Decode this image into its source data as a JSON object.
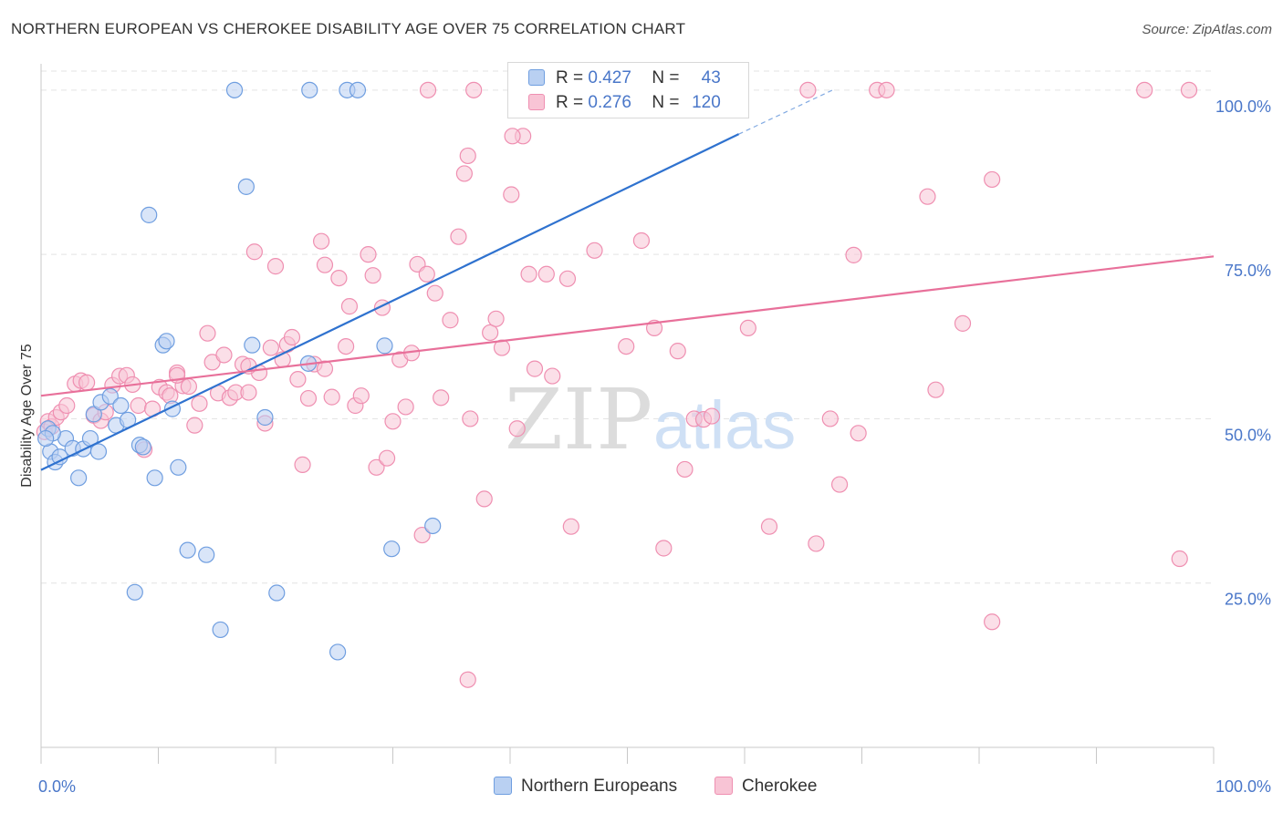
{
  "header": {
    "title": "NORTHERN EUROPEAN VS CHEROKEE DISABILITY AGE OVER 75 CORRELATION CHART",
    "source": "Source: ZipAtlas.com"
  },
  "colors": {
    "blue": "#6f9ee0",
    "blue_fill": "#b9d0f2",
    "blue_line": "#2f72cf",
    "pink": "#ef8fb1",
    "pink_fill": "#f8c4d5",
    "pink_line": "#e8709a",
    "tick_label": "#4a77c9",
    "grid": "#e3e3e3"
  },
  "legend": {
    "rows": [
      {
        "r_label": "R =",
        "r_value": "0.427",
        "n_label": "N =",
        "n_value": "43"
      },
      {
        "r_label": "R =",
        "r_value": "0.276",
        "n_label": "N =",
        "n_value": "120"
      }
    ]
  },
  "bottom_legend": {
    "series1": "Northern Europeans",
    "series2": "Cherokee"
  },
  "watermark": {
    "zip": "ZIP",
    "atlas": "atlas"
  },
  "chart_data": {
    "type": "scatter",
    "title": "NORTHERN EUROPEAN VS CHEROKEE DISABILITY AGE OVER 75 CORRELATION CHART",
    "xlabel": "",
    "ylabel": "Disability Age Over 75",
    "xlim": [
      0,
      100
    ],
    "ylim": [
      0,
      104
    ],
    "x_tick_labels": {
      "left": "0.0%",
      "right": "100.0%"
    },
    "y_ticks": [
      {
        "value": 25,
        "label": "25.0%"
      },
      {
        "value": 50,
        "label": "50.0%"
      },
      {
        "value": 75,
        "label": "75.0%"
      },
      {
        "value": 100,
        "label": "100.0%"
      }
    ],
    "grid": true,
    "series": [
      {
        "name": "Northern Europeans",
        "R": 0.427,
        "N": 43,
        "trend": {
          "x0": 0,
          "y0": 42.2,
          "x1": 59.5,
          "y1": 93.3,
          "dash_to_x": 67.5,
          "dash_to_y": 100
        },
        "points": [
          [
            0.6,
            48.5
          ],
          [
            0.8,
            45.0
          ],
          [
            1.2,
            43.4
          ],
          [
            1.6,
            44.2
          ],
          [
            2.1,
            47.0
          ],
          [
            2.7,
            45.5
          ],
          [
            3.2,
            41.0
          ],
          [
            3.6,
            45.4
          ],
          [
            4.2,
            47.0
          ],
          [
            4.5,
            50.7
          ],
          [
            4.9,
            45.0
          ],
          [
            5.1,
            52.5
          ],
          [
            5.9,
            53.4
          ],
          [
            6.4,
            49.0
          ],
          [
            6.8,
            52.0
          ],
          [
            7.4,
            49.8
          ],
          [
            8.4,
            46.0
          ],
          [
            8.7,
            45.7
          ],
          [
            9.2,
            81.0
          ],
          [
            9.7,
            41.0
          ],
          [
            10.4,
            61.2
          ],
          [
            10.7,
            61.8
          ],
          [
            11.2,
            51.5
          ],
          [
            11.7,
            42.6
          ],
          [
            12.5,
            30.0
          ],
          [
            14.1,
            29.3
          ],
          [
            15.3,
            17.9
          ],
          [
            16.5,
            100.0
          ],
          [
            17.5,
            85.3
          ],
          [
            18.0,
            61.2
          ],
          [
            19.1,
            50.2
          ],
          [
            20.1,
            23.5
          ],
          [
            22.8,
            58.4
          ],
          [
            22.9,
            100.0
          ],
          [
            25.3,
            14.5
          ],
          [
            26.1,
            100.0
          ],
          [
            27.0,
            100.0
          ],
          [
            29.3,
            61.1
          ],
          [
            29.9,
            30.2
          ],
          [
            33.4,
            33.7
          ],
          [
            8.0,
            23.6
          ],
          [
            1.0,
            47.8
          ],
          [
            0.4,
            47.0
          ]
        ]
      },
      {
        "name": "Cherokee",
        "R": 0.276,
        "N": 120,
        "trend": {
          "x0": 0,
          "y0": 53.5,
          "x1": 100,
          "y1": 74.7
        },
        "points": [
          [
            0.3,
            48.0
          ],
          [
            0.6,
            49.6
          ],
          [
            0.9,
            48.8
          ],
          [
            1.3,
            50.2
          ],
          [
            1.7,
            51.0
          ],
          [
            2.2,
            52.0
          ],
          [
            2.9,
            55.3
          ],
          [
            3.4,
            55.8
          ],
          [
            3.9,
            55.5
          ],
          [
            4.5,
            50.5
          ],
          [
            5.1,
            49.7
          ],
          [
            5.5,
            51.0
          ],
          [
            6.1,
            55.1
          ],
          [
            6.7,
            56.5
          ],
          [
            7.3,
            56.6
          ],
          [
            7.8,
            55.2
          ],
          [
            8.3,
            52.0
          ],
          [
            8.8,
            45.3
          ],
          [
            9.5,
            51.5
          ],
          [
            10.1,
            54.8
          ],
          [
            10.7,
            54.0
          ],
          [
            11.0,
            53.5
          ],
          [
            11.6,
            57.0
          ],
          [
            12.1,
            55.0
          ],
          [
            12.6,
            54.9
          ],
          [
            13.1,
            49.0
          ],
          [
            13.5,
            52.3
          ],
          [
            14.2,
            63.0
          ],
          [
            14.6,
            58.6
          ],
          [
            15.1,
            53.9
          ],
          [
            15.6,
            59.7
          ],
          [
            16.1,
            53.2
          ],
          [
            16.6,
            54.0
          ],
          [
            17.2,
            58.3
          ],
          [
            17.7,
            54.0
          ],
          [
            18.2,
            75.4
          ],
          [
            18.6,
            57.0
          ],
          [
            19.1,
            49.3
          ],
          [
            19.6,
            60.8
          ],
          [
            20.0,
            73.2
          ],
          [
            20.6,
            59.0
          ],
          [
            21.0,
            61.3
          ],
          [
            21.4,
            62.4
          ],
          [
            21.9,
            56.0
          ],
          [
            22.3,
            43.0
          ],
          [
            22.8,
            53.1
          ],
          [
            23.3,
            58.3
          ],
          [
            23.9,
            77.0
          ],
          [
            24.2,
            73.4
          ],
          [
            24.8,
            53.3
          ],
          [
            25.4,
            71.4
          ],
          [
            26.0,
            61.0
          ],
          [
            26.3,
            67.1
          ],
          [
            26.8,
            52.0
          ],
          [
            27.3,
            53.5
          ],
          [
            27.9,
            75.0
          ],
          [
            28.3,
            71.8
          ],
          [
            28.6,
            42.6
          ],
          [
            29.1,
            66.9
          ],
          [
            29.5,
            44.0
          ],
          [
            30.0,
            49.6
          ],
          [
            30.6,
            59.0
          ],
          [
            31.1,
            51.8
          ],
          [
            31.6,
            60.0
          ],
          [
            32.1,
            73.5
          ],
          [
            32.5,
            32.3
          ],
          [
            32.9,
            72.0
          ],
          [
            33.6,
            69.1
          ],
          [
            34.1,
            53.2
          ],
          [
            34.9,
            65.0
          ],
          [
            35.6,
            77.7
          ],
          [
            36.1,
            87.3
          ],
          [
            36.6,
            50.0
          ],
          [
            36.9,
            100.0
          ],
          [
            37.8,
            37.8
          ],
          [
            38.3,
            63.1
          ],
          [
            38.8,
            65.2
          ],
          [
            39.3,
            60.8
          ],
          [
            40.1,
            84.1
          ],
          [
            40.6,
            48.5
          ],
          [
            41.1,
            93.0
          ],
          [
            41.6,
            72.0
          ],
          [
            42.1,
            57.6
          ],
          [
            43.1,
            72.0
          ],
          [
            43.6,
            56.5
          ],
          [
            44.9,
            71.3
          ],
          [
            45.2,
            33.6
          ],
          [
            46.1,
            100.0
          ],
          [
            47.2,
            75.6
          ],
          [
            48.1,
            100.0
          ],
          [
            49.9,
            61.0
          ],
          [
            50.5,
            100.0
          ],
          [
            51.2,
            77.1
          ],
          [
            52.3,
            63.8
          ],
          [
            53.1,
            30.3
          ],
          [
            54.3,
            60.3
          ],
          [
            54.9,
            42.3
          ],
          [
            55.7,
            50.0
          ],
          [
            56.5,
            49.9
          ],
          [
            57.2,
            50.4
          ],
          [
            60.3,
            63.8
          ],
          [
            62.1,
            33.6
          ],
          [
            65.4,
            100.0
          ],
          [
            66.1,
            31.0
          ],
          [
            67.3,
            50.0
          ],
          [
            68.1,
            40.0
          ],
          [
            69.3,
            74.9
          ],
          [
            69.7,
            47.8
          ],
          [
            71.3,
            100.0
          ],
          [
            72.1,
            100.0
          ],
          [
            75.6,
            83.8
          ],
          [
            76.3,
            54.4
          ],
          [
            78.6,
            64.5
          ],
          [
            81.1,
            86.4
          ],
          [
            94.1,
            100.0
          ],
          [
            97.1,
            28.7
          ],
          [
            97.9,
            100.0
          ],
          [
            44.1,
            100.0
          ],
          [
            40.2,
            93.0
          ],
          [
            36.4,
            90.0
          ],
          [
            33.0,
            100.0
          ],
          [
            24.2,
            57.6
          ],
          [
            17.7,
            58.0
          ],
          [
            11.6,
            56.6
          ],
          [
            36.4,
            10.3
          ],
          [
            81.1,
            19.1
          ]
        ]
      }
    ]
  }
}
